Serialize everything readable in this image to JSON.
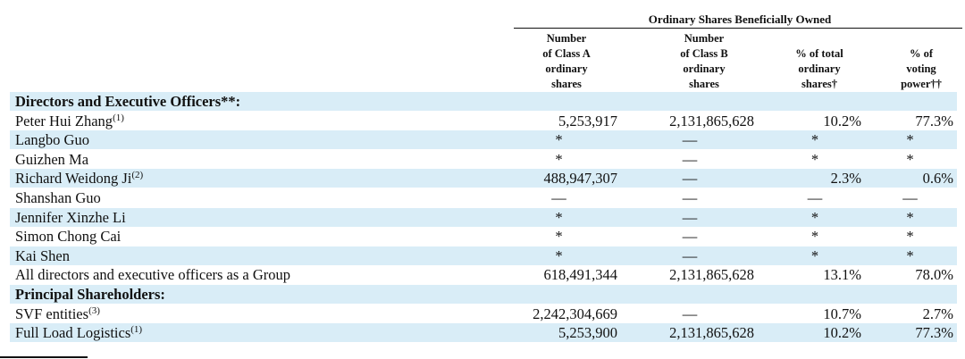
{
  "header": {
    "group_title": "Ordinary Shares Beneficially Owned",
    "columns": [
      [
        "Number",
        "of Class A",
        "ordinary",
        "shares"
      ],
      [
        "Number",
        "of Class B",
        "ordinary",
        "shares"
      ],
      [
        "% of total",
        "ordinary",
        "shares†"
      ],
      [
        "% of",
        "voting",
        "power††"
      ]
    ]
  },
  "rows": [
    {
      "label": "Directors and Executive Officers**:",
      "bold": true,
      "sup": "",
      "c1": "",
      "c2": "",
      "c3": "",
      "c4": ""
    },
    {
      "label": "Peter Hui Zhang",
      "sup": "(1)",
      "c1": "5,253,917",
      "c2": "2,131,865,628",
      "c3": "10.2%",
      "c4": "77.3%"
    },
    {
      "label": "Langbo Guo",
      "sup": "",
      "c1": "*",
      "c2": "—",
      "c3": "*",
      "c4": "*"
    },
    {
      "label": "Guizhen Ma",
      "sup": "",
      "c1": "*",
      "c2": "—",
      "c3": "*",
      "c4": "*"
    },
    {
      "label": "Richard Weidong Ji",
      "sup": "(2)",
      "c1": "488,947,307",
      "c2": "—",
      "c3": "2.3%",
      "c4": "0.6%"
    },
    {
      "label": "Shanshan Guo",
      "sup": "",
      "c1": "—",
      "c2": "—",
      "c3": "—",
      "c4": "—"
    },
    {
      "label": "Jennifer Xinzhe Li",
      "sup": "",
      "c1": "*",
      "c2": "—",
      "c3": "*",
      "c4": "*"
    },
    {
      "label": "Simon Chong Cai",
      "sup": "",
      "c1": "*",
      "c2": "—",
      "c3": "*",
      "c4": "*"
    },
    {
      "label": "Kai Shen",
      "sup": "",
      "c1": "*",
      "c2": "—",
      "c3": "*",
      "c4": "*"
    },
    {
      "label": "All directors and executive officers as a Group",
      "sup": "",
      "c1": "618,491,344",
      "c2": "2,131,865,628",
      "c3": "13.1%",
      "c4": "78.0%"
    },
    {
      "label": "Principal Shareholders:",
      "bold": true,
      "sup": "",
      "c1": "",
      "c2": "",
      "c3": "",
      "c4": ""
    },
    {
      "label": "SVF entities",
      "sup": "(3)",
      "c1": "2,242,304,669",
      "c2": "—",
      "c3": "10.7%",
      "c4": "2.7%"
    },
    {
      "label": "Full Load Logistics",
      "sup": "(1)",
      "c1": "5,253,900",
      "c2": "2,131,865,628",
      "c3": "10.2%",
      "c4": "77.3%"
    }
  ]
}
